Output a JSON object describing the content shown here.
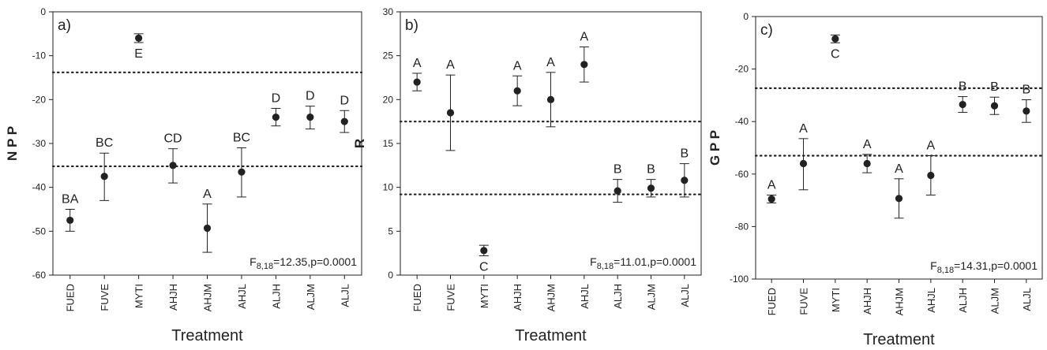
{
  "chart_data": [
    {
      "type": "scatter",
      "panel_label": "a)",
      "ylabel": "N P P",
      "xlabel": "Treatment",
      "ylim": [
        -60,
        0
      ],
      "yticks": [
        0,
        -10,
        -20,
        -30,
        -40,
        -50,
        -60
      ],
      "categories": [
        "FUED",
        "FUVE",
        "MYTI",
        "AHJH",
        "AHJM",
        "AHJL",
        "ALJH",
        "ALJM",
        "ALJL"
      ],
      "values": [
        -47.5,
        -37.5,
        -6,
        -35,
        -49.3,
        -36.5,
        -24,
        -24,
        -25
      ],
      "err_low": [
        2.5,
        5.5,
        1,
        4,
        5.5,
        5.7,
        2,
        2.7,
        2.5
      ],
      "err_high": [
        2.5,
        5.3,
        1,
        3.8,
        5.5,
        5.5,
        2,
        2.5,
        2.5
      ],
      "letters": [
        "BA",
        "BC",
        "E",
        "CD",
        "A",
        "BC",
        "D",
        "D",
        "D"
      ],
      "ref_lines": [
        -13.8,
        -35.2
      ],
      "stat": {
        "prefix": "F",
        "sub": "8,18",
        "text": "=12.35,p=0.0001"
      },
      "grid": false,
      "legend": "none"
    },
    {
      "type": "scatter",
      "panel_label": "b)",
      "ylabel": "R",
      "xlabel": "Treatment",
      "ylim": [
        0,
        30
      ],
      "yticks": [
        0,
        5,
        10,
        15,
        20,
        25,
        30
      ],
      "categories": [
        "FUED",
        "FUVE",
        "MYTI",
        "AHJH",
        "AHJM",
        "AHJL",
        "ALJH",
        "ALJM",
        "ALJL"
      ],
      "values": [
        22,
        18.5,
        2.8,
        21,
        20,
        24,
        9.6,
        9.9,
        10.8
      ],
      "err_low": [
        1,
        4.3,
        0.6,
        1.7,
        3.1,
        2,
        1.3,
        1,
        1.9
      ],
      "err_high": [
        1,
        4.3,
        0.6,
        1.7,
        3.1,
        2,
        1.3,
        1,
        1.9
      ],
      "letters": [
        "A",
        "A",
        "C",
        "A",
        "A",
        "A",
        "B",
        "B",
        "B"
      ],
      "ref_lines": [
        17.5,
        9.2
      ],
      "stat": {
        "prefix": "F",
        "sub": "8,18",
        "text": "=11.01,p=0.0001"
      },
      "grid": false,
      "legend": "none"
    },
    {
      "type": "scatter",
      "panel_label": "c)",
      "ylabel": "G P P",
      "xlabel": "Treatment",
      "ylim": [
        -100,
        0
      ],
      "yticks": [
        0,
        -20,
        -40,
        -60,
        -80,
        -100
      ],
      "categories": [
        "FUED",
        "FUVE",
        "MYTI",
        "AHJH",
        "AHJM",
        "AHJL",
        "ALJH",
        "ALJM",
        "ALJL"
      ],
      "values": [
        -69.5,
        -56,
        -8.5,
        -56,
        -69.3,
        -60.5,
        -33.5,
        -34,
        -36
      ],
      "err_low": [
        1.5,
        10,
        1.5,
        3.5,
        7.5,
        7.5,
        3,
        3.3,
        4.3
      ],
      "err_high": [
        1.5,
        9.5,
        1.5,
        3.5,
        7.5,
        7.5,
        3,
        3.3,
        4.3
      ],
      "letters": [
        "A",
        "A",
        "C",
        "A",
        "A",
        "A",
        "B",
        "B",
        "B"
      ],
      "ref_lines": [
        -27.3,
        -53
      ],
      "stat": {
        "prefix": "F",
        "sub": "8,18",
        "text": "=14.31,p=0.0001"
      },
      "grid": false,
      "legend": "none"
    }
  ]
}
